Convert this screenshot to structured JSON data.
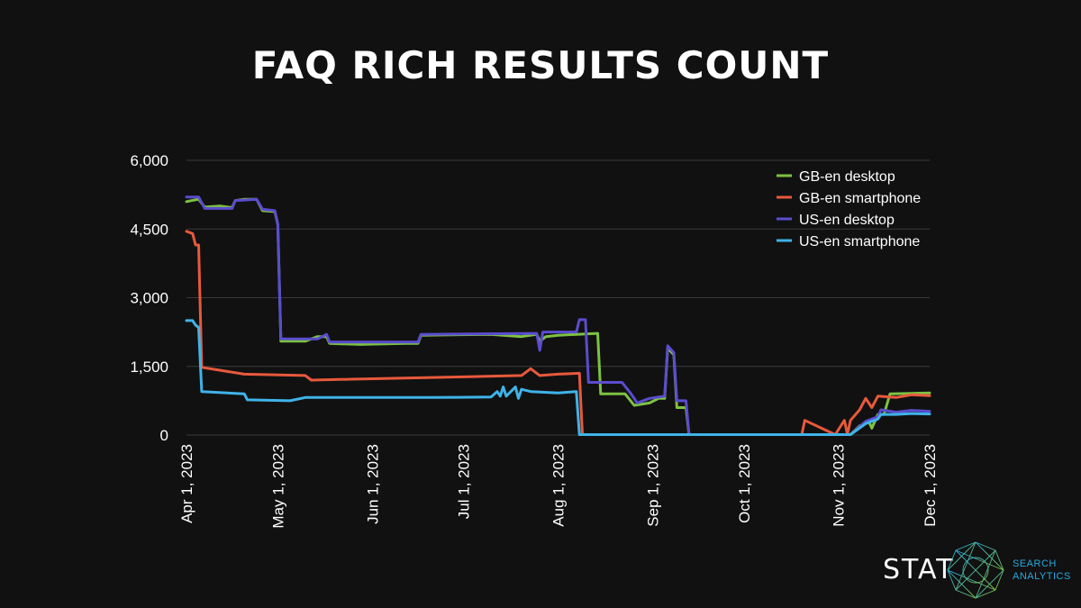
{
  "chart_data": {
    "type": "line",
    "title": "FAQ RICH RESULTS COUNT",
    "xlabel": "",
    "ylabel": "",
    "x_ticks": [
      "Apr 1, 2023",
      "May 1, 2023",
      "Jun 1, 2023",
      "Jul 1, 2023",
      "Aug 1, 2023",
      "Sep 1, 2023",
      "Oct 1, 2023",
      "Nov 1, 2023",
      "Dec 1, 2023"
    ],
    "x_range": [
      "2023-04-01",
      "2023-12-01"
    ],
    "y_ticks": [
      0,
      1500,
      3000,
      4500,
      6000
    ],
    "y_tick_labels": [
      "0",
      "1,500",
      "3,000",
      "4,500",
      "6,000"
    ],
    "ylim": [
      0,
      6000
    ],
    "grid": "horizontal",
    "legend_position": "top-right",
    "series": [
      {
        "name": "GB-en desktop",
        "color": "#7dc242",
        "points": [
          [
            "2023-04-01",
            5100
          ],
          [
            "2023-04-05",
            5150
          ],
          [
            "2023-04-07",
            4980
          ],
          [
            "2023-04-12",
            5000
          ],
          [
            "2023-04-16",
            4970
          ],
          [
            "2023-04-17",
            5120
          ],
          [
            "2023-04-20",
            5150
          ],
          [
            "2023-04-24",
            5150
          ],
          [
            "2023-04-26",
            4900
          ],
          [
            "2023-04-30",
            4880
          ],
          [
            "2023-05-01",
            4600
          ],
          [
            "2023-05-02",
            2050
          ],
          [
            "2023-05-10",
            2050
          ],
          [
            "2023-05-14",
            2150
          ],
          [
            "2023-05-17",
            2150
          ],
          [
            "2023-05-18",
            2000
          ],
          [
            "2023-05-28",
            1980
          ],
          [
            "2023-06-12",
            2000
          ],
          [
            "2023-06-16",
            2000
          ],
          [
            "2023-06-17",
            2180
          ],
          [
            "2023-07-10",
            2200
          ],
          [
            "2023-07-20",
            2150
          ],
          [
            "2023-07-25",
            2200
          ],
          [
            "2023-07-26",
            2050
          ],
          [
            "2023-07-28",
            2150
          ],
          [
            "2023-08-01",
            2180
          ],
          [
            "2023-08-14",
            2220
          ],
          [
            "2023-08-15",
            900
          ],
          [
            "2023-08-23",
            900
          ],
          [
            "2023-08-26",
            650
          ],
          [
            "2023-08-31",
            700
          ],
          [
            "2023-09-03",
            800
          ],
          [
            "2023-09-05",
            800
          ],
          [
            "2023-09-06",
            1900
          ],
          [
            "2023-09-08",
            1750
          ],
          [
            "2023-09-09",
            600
          ],
          [
            "2023-09-12",
            600
          ],
          [
            "2023-09-13",
            10
          ],
          [
            "2023-10-31",
            10
          ],
          [
            "2023-11-05",
            10
          ],
          [
            "2023-11-08",
            200
          ],
          [
            "2023-11-11",
            300
          ],
          [
            "2023-11-12",
            150
          ],
          [
            "2023-11-14",
            450
          ],
          [
            "2023-11-16",
            450
          ],
          [
            "2023-11-18",
            900
          ],
          [
            "2023-12-01",
            920
          ]
        ]
      },
      {
        "name": "GB-en smartphone",
        "color": "#e8593c",
        "points": [
          [
            "2023-04-01",
            4450
          ],
          [
            "2023-04-03",
            4400
          ],
          [
            "2023-04-04",
            4150
          ],
          [
            "2023-04-05",
            4150
          ],
          [
            "2023-04-06",
            1480
          ],
          [
            "2023-04-20",
            1330
          ],
          [
            "2023-05-10",
            1300
          ],
          [
            "2023-05-12",
            1200
          ],
          [
            "2023-05-25",
            1220
          ],
          [
            "2023-06-15",
            1250
          ],
          [
            "2023-07-01",
            1270
          ],
          [
            "2023-07-20",
            1300
          ],
          [
            "2023-07-23",
            1450
          ],
          [
            "2023-07-26",
            1300
          ],
          [
            "2023-08-01",
            1330
          ],
          [
            "2023-08-08",
            1350
          ],
          [
            "2023-08-09",
            10
          ],
          [
            "2023-10-31",
            10
          ],
          [
            "2023-10-20",
            10
          ],
          [
            "2023-10-21",
            320
          ],
          [
            "2023-11-03",
            320
          ],
          [
            "2023-11-04",
            20
          ],
          [
            "2023-11-05",
            320
          ],
          [
            "2023-11-08",
            550
          ],
          [
            "2023-11-10",
            800
          ],
          [
            "2023-11-12",
            600
          ],
          [
            "2023-11-14",
            850
          ],
          [
            "2023-11-20",
            820
          ],
          [
            "2023-11-25",
            880
          ],
          [
            "2023-12-01",
            860
          ]
        ]
      },
      {
        "name": "US-en desktop",
        "color": "#5b4ccf",
        "points": [
          [
            "2023-04-01",
            5200
          ],
          [
            "2023-04-05",
            5200
          ],
          [
            "2023-04-07",
            4950
          ],
          [
            "2023-04-16",
            4950
          ],
          [
            "2023-04-17",
            5120
          ],
          [
            "2023-04-24",
            5150
          ],
          [
            "2023-04-26",
            4930
          ],
          [
            "2023-04-30",
            4900
          ],
          [
            "2023-05-01",
            4600
          ],
          [
            "2023-05-02",
            2100
          ],
          [
            "2023-05-14",
            2100
          ],
          [
            "2023-05-17",
            2200
          ],
          [
            "2023-05-18",
            2030
          ],
          [
            "2023-06-16",
            2030
          ],
          [
            "2023-06-17",
            2200
          ],
          [
            "2023-07-25",
            2220
          ],
          [
            "2023-07-26",
            1850
          ],
          [
            "2023-07-27",
            2250
          ],
          [
            "2023-08-07",
            2250
          ],
          [
            "2023-08-08",
            2520
          ],
          [
            "2023-08-10",
            2520
          ],
          [
            "2023-08-11",
            1150
          ],
          [
            "2023-08-22",
            1150
          ],
          [
            "2023-08-25",
            900
          ],
          [
            "2023-08-27",
            700
          ],
          [
            "2023-08-31",
            800
          ],
          [
            "2023-09-05",
            850
          ],
          [
            "2023-09-06",
            1950
          ],
          [
            "2023-09-08",
            1800
          ],
          [
            "2023-09-09",
            750
          ],
          [
            "2023-09-12",
            750
          ],
          [
            "2023-09-13",
            10
          ],
          [
            "2023-11-05",
            10
          ],
          [
            "2023-11-10",
            300
          ],
          [
            "2023-11-14",
            400
          ],
          [
            "2023-11-15",
            550
          ],
          [
            "2023-11-20",
            500
          ],
          [
            "2023-11-25",
            540
          ],
          [
            "2023-12-01",
            520
          ]
        ]
      },
      {
        "name": "US-en smartphone",
        "color": "#3fb3e8",
        "points": [
          [
            "2023-04-01",
            2500
          ],
          [
            "2023-04-03",
            2500
          ],
          [
            "2023-04-04",
            2400
          ],
          [
            "2023-04-05",
            2350
          ],
          [
            "2023-04-06",
            950
          ],
          [
            "2023-04-20",
            900
          ],
          [
            "2023-04-21",
            770
          ],
          [
            "2023-05-05",
            750
          ],
          [
            "2023-05-10",
            820
          ],
          [
            "2023-06-01",
            820
          ],
          [
            "2023-06-20",
            820
          ],
          [
            "2023-07-10",
            830
          ],
          [
            "2023-07-12",
            950
          ],
          [
            "2023-07-13",
            850
          ],
          [
            "2023-07-14",
            1050
          ],
          [
            "2023-07-15",
            850
          ],
          [
            "2023-07-18",
            1050
          ],
          [
            "2023-07-19",
            800
          ],
          [
            "2023-07-20",
            1000
          ],
          [
            "2023-07-23",
            950
          ],
          [
            "2023-08-01",
            920
          ],
          [
            "2023-08-07",
            950
          ],
          [
            "2023-08-08",
            10
          ],
          [
            "2023-11-05",
            10
          ],
          [
            "2023-11-10",
            250
          ],
          [
            "2023-11-14",
            350
          ],
          [
            "2023-11-15",
            450
          ],
          [
            "2023-11-20",
            450
          ],
          [
            "2023-11-25",
            470
          ],
          [
            "2023-12-01",
            460
          ]
        ]
      }
    ]
  },
  "brand": {
    "name": "STAT",
    "line1": "SEARCH",
    "line2": "ANALYTICS",
    "mark_icon": "geodesic-network-icon"
  }
}
